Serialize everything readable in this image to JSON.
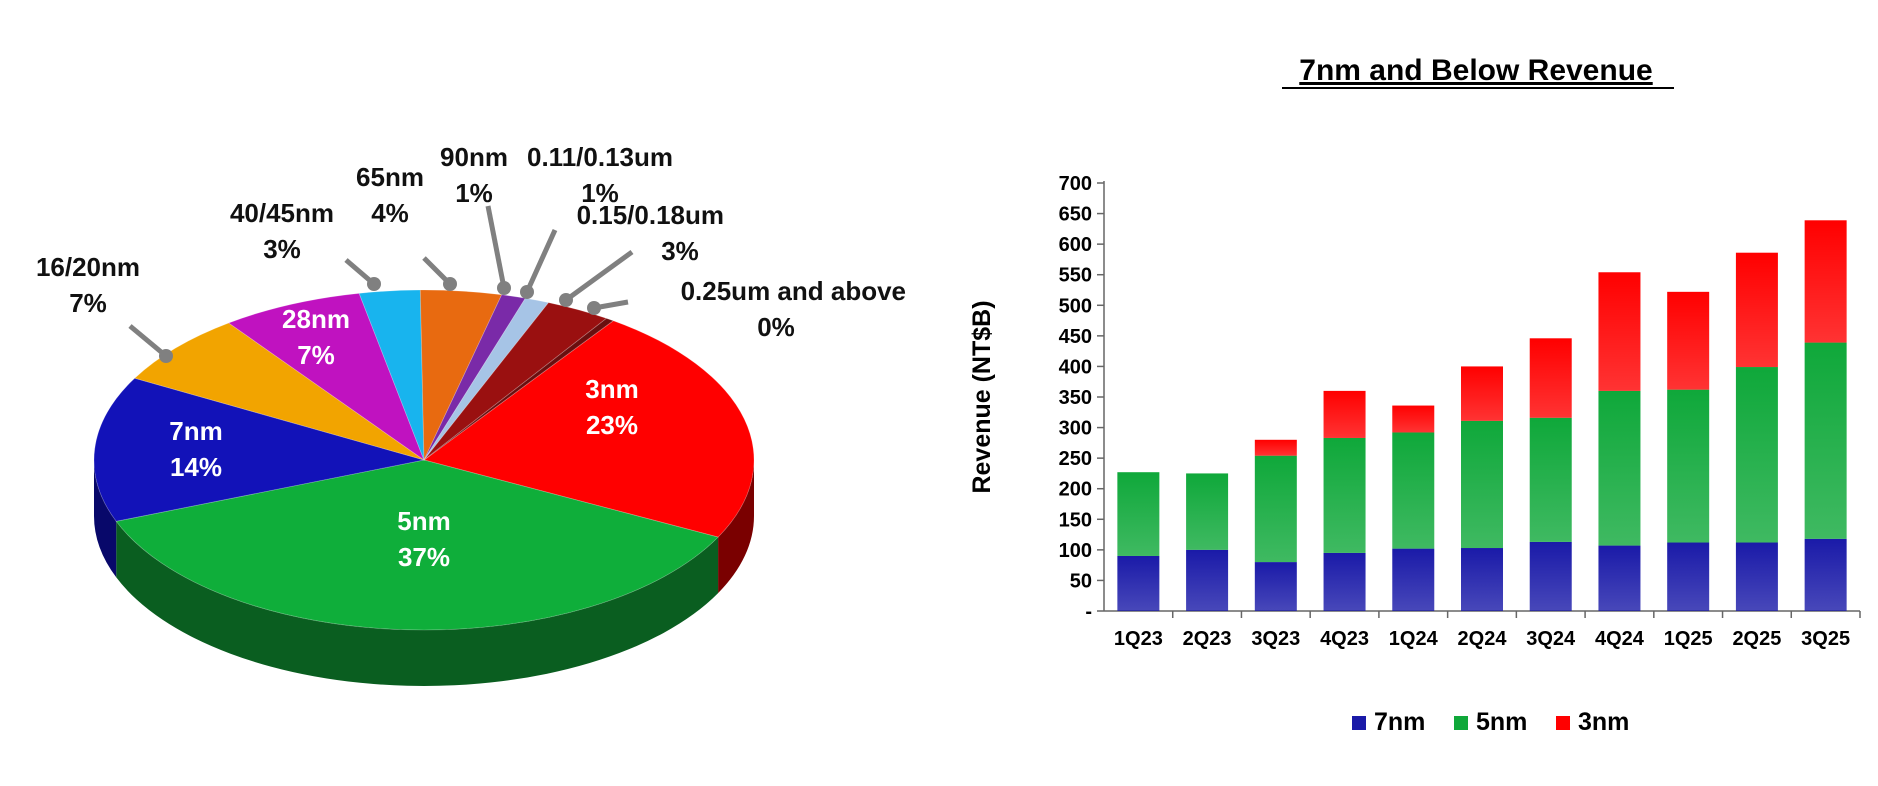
{
  "chart_data": [
    {
      "type": "pie",
      "title": "",
      "slices": [
        {
          "label": "3nm",
          "percent_label": "23%",
          "value": 23,
          "color": "#ff0000",
          "side": "#7a0000",
          "inside": true
        },
        {
          "label": "5nm",
          "percent_label": "37%",
          "value": 37,
          "color": "#0fae3a",
          "side": "#0a5e20",
          "inside": true
        },
        {
          "label": "7nm",
          "percent_label": "14%",
          "value": 14,
          "color": "#1212b8",
          "side": "#08086a",
          "inside": true
        },
        {
          "label": "16/20nm",
          "percent_label": "7%",
          "value": 7,
          "color": "#f2a400",
          "side": "#8a5d00",
          "inside": false
        },
        {
          "label": "28nm",
          "percent_label": "7%",
          "value": 7,
          "color": "#c012c0",
          "side": "#6a0a6a",
          "inside": true
        },
        {
          "label": "40/45nm",
          "percent_label": "3%",
          "value": 3,
          "color": "#18b4ee",
          "side": "#0b6a8c",
          "inside": false
        },
        {
          "label": "65nm",
          "percent_label": "4%",
          "value": 4,
          "color": "#e86a10",
          "side": "#5a2a00",
          "inside": false
        },
        {
          "label": "90nm",
          "percent_label": "1%",
          "value": 1.2,
          "color": "#7a2aa8",
          "side": "#3e1458",
          "inside": false
        },
        {
          "label": "0.11/0.13um",
          "percent_label": "1%",
          "value": 1.2,
          "color": "#a6c4e6",
          "side": "#5a7490",
          "inside": false
        },
        {
          "label": "0.15/0.18um",
          "percent_label": "3%",
          "value": 3.2,
          "color": "#9a1010",
          "side": "#500808",
          "inside": false
        },
        {
          "label": "0.25um and above",
          "percent_label": "0%",
          "value": 0.4,
          "color": "#6a0f0f",
          "side": "#3a0606",
          "inside": false
        }
      ]
    },
    {
      "type": "bar",
      "stacked": true,
      "title": "7nm and Below Revenue",
      "xlabel": "",
      "ylabel": "Revenue (NT$B)",
      "ylim": [
        0,
        700
      ],
      "yticks": [
        "-",
        "50",
        "100",
        "150",
        "200",
        "250",
        "300",
        "350",
        "400",
        "450",
        "500",
        "550",
        "600",
        "650",
        "700"
      ],
      "categories": [
        "1Q23",
        "2Q23",
        "3Q23",
        "4Q23",
        "1Q24",
        "2Q24",
        "3Q24",
        "4Q24",
        "1Q25",
        "2Q25",
        "3Q25"
      ],
      "series": [
        {
          "name": "7nm",
          "color": "#1a1aa8",
          "values": [
            90,
            100,
            80,
            95,
            102,
            103,
            113,
            107,
            112,
            112,
            118
          ]
        },
        {
          "name": "5nm",
          "color": "#0fa83a",
          "values": [
            137,
            125,
            174,
            188,
            190,
            208,
            203,
            253,
            250,
            287,
            321
          ]
        },
        {
          "name": "3nm",
          "color": "#ff0000",
          "values": [
            0,
            0,
            26,
            77,
            44,
            89,
            130,
            194,
            160,
            187,
            200
          ]
        }
      ],
      "legend_position": "bottom"
    }
  ]
}
